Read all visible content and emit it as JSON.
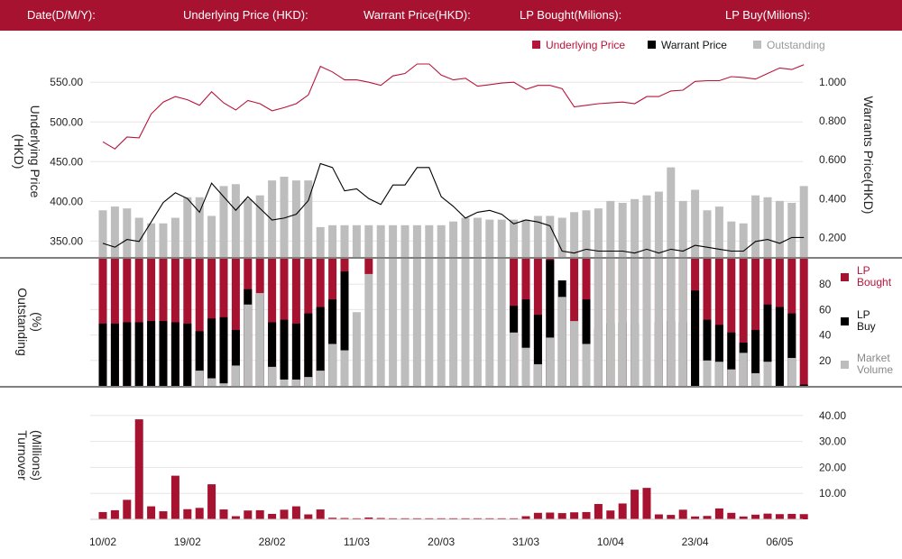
{
  "header": {
    "date_label": "Date(D/M/Y):",
    "underlying_label": "Underlying Price (HKD):",
    "warrant_label": "Warrant Price(HKD):",
    "lp_bought_label": "LP Bought(Milions):",
    "lp_buy_label": "LP Buy(Milions):"
  },
  "colors": {
    "header_bg": "#a6122f",
    "underlying": "#b8143a",
    "warrant": "#000000",
    "outstanding": "#bdbdbd",
    "lp_bought": "#a6122f",
    "lp_buy": "#000000",
    "market_volume": "#bdbdbd",
    "turnover": "#a6122f"
  },
  "chart_data": [
    {
      "type": "line",
      "panel": "price",
      "legend": [
        "Underlying Price",
        "Warrant  Price",
        "Outstanding"
      ],
      "ylabel_left": "Underlying Price\n(HKD)",
      "ylabel_right": "Warrants  Price(HKD)",
      "yticks_left": [
        "550.00",
        "500.00",
        "450.00",
        "400.00",
        "350.00"
      ],
      "yticks_right": [
        "1.000",
        "0.800",
        "0.600",
        "0.400",
        "0.200"
      ],
      "ylim_left": [
        330,
        565
      ],
      "ylim_right": [
        0.1,
        1.06
      ],
      "outstanding_range": [
        0,
        100
      ],
      "x_count": 59,
      "underlying": [
        475,
        466,
        481,
        480,
        510,
        525,
        532,
        528,
        521,
        538,
        524,
        515,
        527,
        523,
        514,
        518,
        523,
        534,
        570,
        563,
        553,
        553,
        550,
        546,
        558,
        561,
        573,
        573,
        559,
        553,
        555,
        545,
        547,
        549,
        550,
        541,
        546,
        546,
        542,
        519,
        521,
        523,
        524,
        525,
        523,
        532,
        532,
        539,
        540,
        551,
        552,
        552,
        557,
        556,
        554,
        561,
        568,
        566,
        572
      ],
      "warrant": [
        0.17,
        0.15,
        0.19,
        0.18,
        0.28,
        0.38,
        0.43,
        0.4,
        0.33,
        0.48,
        0.41,
        0.34,
        0.41,
        0.35,
        0.29,
        0.3,
        0.32,
        0.39,
        0.58,
        0.56,
        0.44,
        0.45,
        0.4,
        0.37,
        0.47,
        0.47,
        0.56,
        0.56,
        0.41,
        0.36,
        0.3,
        0.33,
        0.34,
        0.32,
        0.27,
        0.29,
        0.28,
        0.26,
        0.13,
        0.12,
        0.14,
        0.13,
        0.13,
        0.13,
        0.12,
        0.14,
        0.12,
        0.14,
        0.13,
        0.16,
        0.15,
        0.14,
        0.13,
        0.13,
        0.18,
        0.19,
        0.17,
        0.2,
        0.2
      ],
      "outstanding": [
        25,
        27,
        26,
        21,
        18,
        18,
        21,
        32,
        32,
        22,
        38,
        39,
        31,
        33,
        41,
        43,
        41,
        41,
        16,
        17,
        17,
        17,
        17,
        17,
        17,
        17,
        17,
        17,
        17,
        19,
        21,
        21,
        20,
        20,
        20,
        20,
        22,
        22,
        21,
        24,
        25,
        26,
        30,
        29,
        31,
        33,
        35,
        48,
        30,
        36,
        25,
        27,
        19,
        18,
        33,
        32,
        30,
        29,
        38
      ]
    },
    {
      "type": "bar",
      "panel": "outstanding",
      "legend": [
        "LP Bought",
        "LP Buy",
        "Market Volume"
      ],
      "ylabel": "Outstanding\n(%)",
      "yticks": [
        "80",
        "60",
        "40",
        "20"
      ],
      "ylim": [
        0,
        100
      ],
      "x_count": 59,
      "lp_bought": [
        100,
        100,
        100,
        100,
        100,
        100,
        100,
        100,
        100,
        100,
        100,
        100,
        100,
        100,
        100,
        100,
        100,
        100,
        100,
        100,
        100,
        0,
        0,
        0,
        0,
        0,
        0,
        0,
        0,
        0,
        0,
        0,
        0,
        0,
        100,
        100,
        100,
        100,
        0,
        100,
        100,
        100,
        100,
        100,
        100,
        100,
        100,
        100,
        100,
        100,
        100,
        100,
        100,
        100,
        100,
        100,
        100,
        100,
        100
      ],
      "lp_buy": [
        49,
        49,
        50,
        50,
        51,
        51,
        50,
        49,
        43,
        53,
        54,
        44,
        76,
        72,
        50,
        52,
        49,
        57,
        62,
        68,
        90,
        0,
        0,
        0,
        0,
        0,
        0,
        0,
        0,
        0,
        0,
        0,
        0,
        0,
        63,
        68,
        56,
        99,
        83,
        0,
        68,
        45,
        49,
        50,
        49,
        49,
        50,
        51,
        50,
        75,
        52,
        48,
        42,
        34,
        44,
        64,
        62,
        57,
        1
      ],
      "market_volume": [
        0,
        0,
        0,
        0,
        0,
        0,
        0,
        0,
        12,
        6,
        2,
        16,
        64,
        73,
        15,
        5,
        5,
        7,
        12,
        33,
        28,
        58,
        88,
        100,
        100,
        100,
        100,
        100,
        100,
        100,
        100,
        100,
        100,
        100,
        42,
        30,
        17,
        38,
        70,
        51,
        33,
        100,
        100,
        100,
        100,
        100,
        100,
        100,
        100,
        0,
        20,
        19,
        13,
        26,
        10,
        19,
        0,
        22,
        0
      ],
      "lp_bought_partial_top": [
        0,
        0,
        0,
        0,
        0,
        0,
        0,
        0,
        0,
        0,
        0,
        0,
        0,
        0,
        0,
        0,
        0,
        0,
        0,
        0,
        0,
        0,
        12,
        0,
        0,
        0,
        0,
        0,
        0,
        0,
        0,
        0,
        0,
        0,
        0,
        0,
        0,
        0,
        0,
        0,
        0,
        0,
        0,
        0,
        0,
        0,
        0,
        0,
        0,
        0,
        0,
        0,
        0,
        0,
        0,
        0,
        0,
        0,
        0
      ]
    },
    {
      "type": "bar",
      "panel": "turnover",
      "ylabel": "Turnover\n(Millions)",
      "yticks": [
        "40.00",
        "30.00",
        "20.00",
        "10.00"
      ],
      "ylim": [
        0,
        42
      ],
      "x_count": 59,
      "xtick_labels": [
        "10/02",
        "19/02",
        "28/02",
        "11/03",
        "20/03",
        "31/03",
        "10/04",
        "23/04",
        "06/05"
      ],
      "xtick_index": [
        0,
        7,
        14,
        21,
        28,
        35,
        42,
        49,
        56
      ],
      "values": [
        2.8,
        3.5,
        7.5,
        38.5,
        5.0,
        3.1,
        16.8,
        3.9,
        4.4,
        13.5,
        3.8,
        1.2,
        3.4,
        3.5,
        2.1,
        3.7,
        5.0,
        1.9,
        3.8,
        0.6,
        0.5,
        0.4,
        0.7,
        0.5,
        0.4,
        0.4,
        0.4,
        0.4,
        0.4,
        0.4,
        0.4,
        0.4,
        0.4,
        0.4,
        0.4,
        1.2,
        2.5,
        2.6,
        2.4,
        2.7,
        2.8,
        5.9,
        3.4,
        6.1,
        11.4,
        12.1,
        1.9,
        1.7,
        3.7,
        1.1,
        1.3,
        4.2,
        2.5,
        1.1,
        1.8,
        2.2,
        2.0,
        2.1,
        2.0
      ]
    }
  ]
}
